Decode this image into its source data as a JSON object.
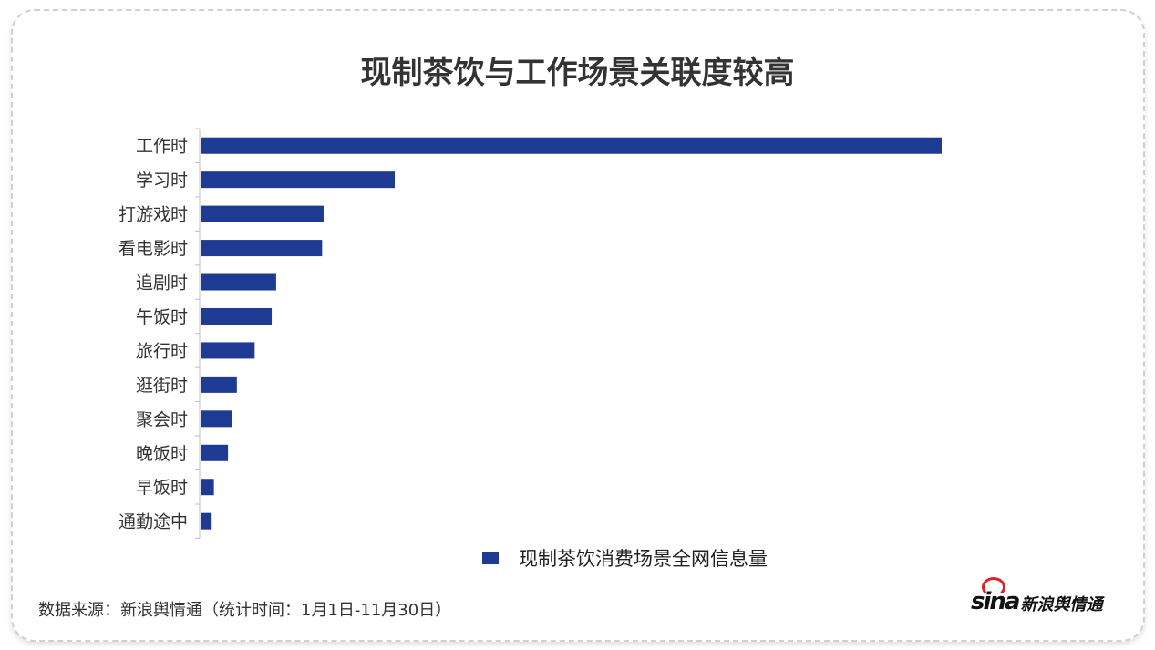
{
  "title": "现制茶饮与工作场景关联度较高",
  "chart_data": {
    "type": "bar",
    "orientation": "horizontal",
    "categories": [
      "工作时",
      "学习时",
      "打游戏时",
      "看电影时",
      "追剧时",
      "午饭时",
      "旅行时",
      "逛街时",
      "聚会时",
      "晚饭时",
      "早饭时",
      "通勤途中"
    ],
    "series": [
      {
        "name": "现制茶饮消费场景全网信息量",
        "values": [
          100,
          26.2,
          16.6,
          16.4,
          10.2,
          9.6,
          7.3,
          4.9,
          4.2,
          3.7,
          1.8,
          1.5
        ]
      }
    ],
    "xlim": [
      0,
      100
    ],
    "grid": false,
    "legend": "bottom",
    "color": "#1f3a93"
  },
  "source": "数据来源：新浪舆情通（统计时间：1月1日-11月30日）",
  "logo": {
    "brand": "sina",
    "text": "新浪舆情通"
  }
}
